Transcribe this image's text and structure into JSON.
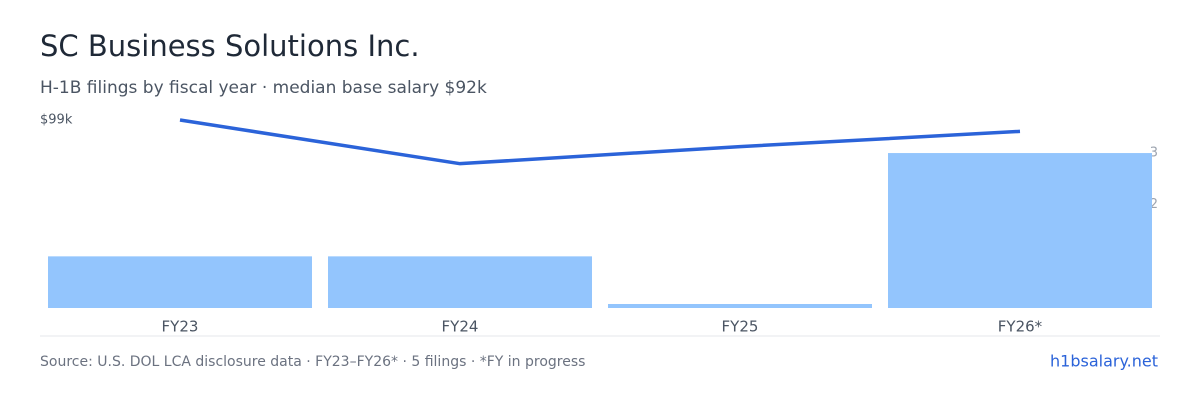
{
  "chart_data": {
    "type": "bar",
    "title": "SC Business Solutions Inc.",
    "subtitle": "H-1B filings by fiscal year · median base salary $92k",
    "categories": [
      "FY23",
      "FY24",
      "FY25",
      "FY26*"
    ],
    "series": [
      {
        "type": "bar",
        "axis": "y2",
        "color": "#93c5fd",
        "values": [
          1,
          1,
          0,
          3
        ]
      },
      {
        "type": "line",
        "color": "#2b63d9",
        "values": [
          99,
          76,
          85,
          93
        ]
      }
    ],
    "ylim": [
      0,
      99
    ],
    "yticks": [
      {
        "value": 99,
        "label": "$99k"
      }
    ],
    "y2lim": [
      0,
      3.64
    ],
    "y2ticks": [
      2,
      3
    ],
    "source": "Source: U.S. DOL LCA disclosure data · FY23–FY26* · 5 filings · *FY in progress",
    "brand": "h1bsalary.net"
  }
}
